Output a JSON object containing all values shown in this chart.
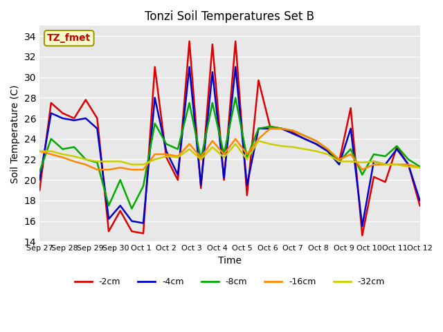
{
  "title": "Tonzi Soil Temperatures Set B",
  "xlabel": "Time",
  "ylabel": "Soil Temperature (C)",
  "ylim": [
    14,
    35
  ],
  "xlim": [
    0,
    15
  ],
  "background_color": "#e8e8e8",
  "annotation_text": "TZ_fmet",
  "annotation_color": "#cc0000",
  "annotation_bg": "#ffffcc",
  "annotation_border": "#999900",
  "x_tick_labels": [
    "Sep 27",
    "Sep 28",
    "Sep 29",
    "Sep 30",
    "Oct 1",
    "Oct 2",
    "Oct 3",
    "Oct 4",
    "Oct 5",
    "Oct 6",
    "Oct 7",
    "Oct 8",
    "Oct 9",
    "Oct 10",
    "Oct 11",
    "Oct 12"
  ],
  "series": {
    "-2cm": {
      "color": "#dd0000",
      "linewidth": 1.8,
      "values": [
        19.0,
        27.5,
        26.5,
        26.0,
        27.8,
        26.0,
        15.0,
        17.0,
        15.0,
        14.8,
        31.0,
        22.2,
        20.0,
        33.5,
        19.2,
        33.2,
        20.0,
        33.5,
        18.5,
        29.7,
        25.2,
        25.0,
        24.6,
        24.0,
        23.5,
        22.8,
        21.8,
        27.0,
        14.6,
        20.3,
        19.8,
        23.2,
        21.5,
        17.5
      ]
    },
    "-4cm": {
      "color": "#0000cc",
      "linewidth": 1.8,
      "values": [
        20.0,
        26.5,
        26.0,
        25.8,
        26.0,
        25.0,
        16.2,
        17.5,
        16.0,
        15.8,
        28.0,
        22.8,
        20.5,
        31.0,
        19.5,
        30.5,
        20.2,
        31.0,
        19.5,
        25.0,
        25.0,
        25.0,
        24.5,
        24.0,
        23.5,
        22.8,
        21.5,
        25.0,
        15.5,
        21.8,
        21.5,
        23.0,
        21.5,
        18.0
      ]
    },
    "-8cm": {
      "color": "#00aa00",
      "linewidth": 1.8,
      "values": [
        20.8,
        24.0,
        23.0,
        23.2,
        22.0,
        21.7,
        17.5,
        20.0,
        17.2,
        19.4,
        25.5,
        23.5,
        23.0,
        27.5,
        22.0,
        27.5,
        22.5,
        28.0,
        22.2,
        25.0,
        25.2,
        25.0,
        24.8,
        24.3,
        23.8,
        23.0,
        21.8,
        23.0,
        20.5,
        22.5,
        22.3,
        23.3,
        22.0,
        21.3
      ]
    },
    "-16cm": {
      "color": "#ff8800",
      "linewidth": 1.8,
      "values": [
        22.8,
        22.5,
        22.2,
        21.8,
        21.5,
        21.0,
        21.0,
        21.2,
        21.0,
        21.0,
        22.5,
        22.5,
        22.3,
        23.5,
        22.2,
        23.8,
        22.5,
        24.0,
        22.5,
        24.0,
        25.0,
        25.0,
        24.8,
        24.3,
        23.8,
        23.0,
        22.0,
        22.5,
        21.0,
        21.5,
        21.5,
        21.5,
        21.5,
        21.2
      ]
    },
    "-32cm": {
      "color": "#cccc00",
      "linewidth": 1.8,
      "values": [
        22.8,
        22.8,
        22.5,
        22.3,
        22.0,
        21.8,
        21.8,
        21.8,
        21.5,
        21.5,
        22.0,
        22.3,
        22.2,
        23.0,
        22.0,
        23.2,
        22.2,
        23.5,
        22.0,
        23.8,
        23.5,
        23.3,
        23.2,
        23.0,
        22.8,
        22.5,
        21.8,
        21.8,
        21.7,
        21.8,
        21.5,
        21.5,
        21.3,
        21.2
      ]
    }
  }
}
